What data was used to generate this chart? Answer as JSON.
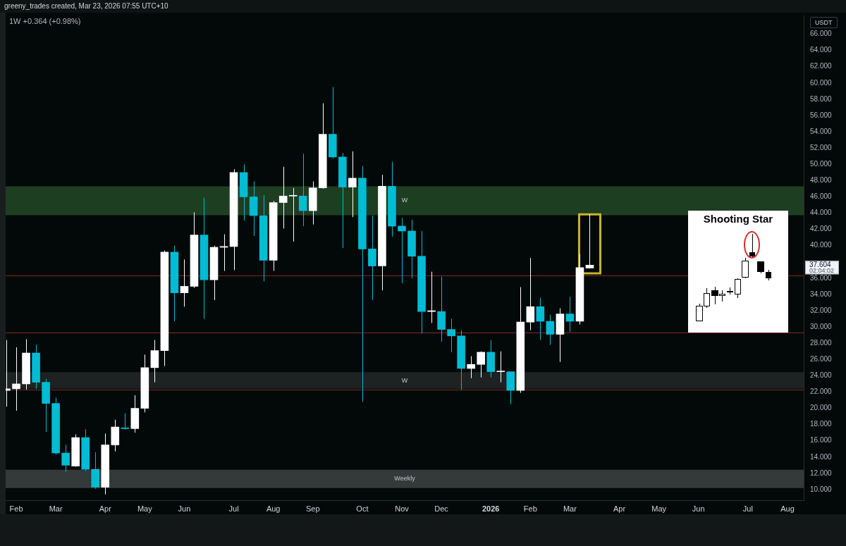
{
  "chart_data": {
    "type": "candlestick",
    "subtitle": "1W +0.364 (+0.98%)",
    "ylabel": "USDT",
    "annotations": [
      "greeny_trades created, Mar 23, 2026 07:55 UTC+10",
      "Shooting Star",
      "37.604",
      "02:04:02"
    ],
    "x": [
      "2025-01-27",
      "2025-02-03",
      "2025-02-10",
      "2025-02-17",
      "2025-02-24",
      "2025-03-03",
      "2025-03-10",
      "2025-03-17",
      "2025-03-24",
      "2025-03-31",
      "2025-04-07",
      "2025-04-14",
      "2025-04-21",
      "2025-04-28",
      "2025-05-05",
      "2025-05-12",
      "2025-05-19",
      "2025-05-26",
      "2025-06-02",
      "2025-06-09",
      "2025-06-16",
      "2025-06-23",
      "2025-06-30",
      "2025-07-07",
      "2025-07-14",
      "2025-07-21",
      "2025-07-28",
      "2025-08-04",
      "2025-08-11",
      "2025-08-18",
      "2025-08-25",
      "2025-09-01",
      "2025-09-08",
      "2025-09-15",
      "2025-09-22",
      "2025-09-29",
      "2025-10-06",
      "2025-10-13",
      "2025-10-20",
      "2025-10-27",
      "2025-11-03",
      "2025-11-10",
      "2025-11-17",
      "2025-11-24",
      "2025-12-01",
      "2025-12-08",
      "2025-12-15",
      "2025-12-22",
      "2025-12-29",
      "2026-01-05",
      "2026-01-12",
      "2026-01-19",
      "2026-01-26",
      "2026-02-02",
      "2026-02-09",
      "2026-02-16",
      "2026-02-23",
      "2026-03-02",
      "2026-03-09",
      "2026-03-16"
    ],
    "ohlc": [
      [
        22.2,
        28.4,
        20.2,
        22.4
      ],
      [
        22.4,
        27.5,
        19.7,
        23.0
      ],
      [
        23.0,
        28.5,
        22.3,
        26.8
      ],
      [
        26.8,
        27.8,
        22.4,
        23.2
      ],
      [
        23.2,
        23.6,
        17.1,
        20.6
      ],
      [
        20.6,
        21.3,
        14.3,
        14.5
      ],
      [
        14.5,
        15.5,
        12.2,
        13.0
      ],
      [
        12.9,
        16.8,
        12.8,
        16.4
      ],
      [
        16.4,
        17.4,
        12.3,
        12.5
      ],
      [
        12.5,
        14.6,
        10.1,
        10.3
      ],
      [
        10.3,
        16.9,
        9.4,
        15.5
      ],
      [
        15.5,
        18.6,
        14.7,
        17.7
      ],
      [
        17.6,
        19.4,
        17.4,
        17.5
      ],
      [
        17.5,
        21.6,
        17.0,
        20.0
      ],
      [
        20.0,
        26.6,
        19.5,
        25.0
      ],
      [
        25.0,
        28.4,
        23.2,
        27.1
      ],
      [
        27.1,
        39.4,
        25.2,
        39.2
      ],
      [
        39.2,
        40.0,
        30.7,
        34.2
      ],
      [
        34.2,
        38.3,
        32.5,
        35.0
      ],
      [
        35.0,
        44.1,
        34.8,
        41.3
      ],
      [
        41.3,
        45.9,
        31.0,
        35.8
      ],
      [
        35.8,
        40.0,
        33.3,
        39.8
      ],
      [
        39.8,
        41.4,
        36.9,
        39.9
      ],
      [
        39.9,
        49.4,
        37.0,
        49.0
      ],
      [
        49.0,
        50.0,
        43.1,
        46.0
      ],
      [
        46.0,
        47.9,
        41.2,
        43.7
      ],
      [
        43.7,
        46.2,
        35.6,
        38.2
      ],
      [
        38.2,
        45.5,
        36.9,
        45.3
      ],
      [
        45.3,
        49.7,
        42.1,
        46.1
      ],
      [
        46.1,
        47.1,
        40.5,
        46.1
      ],
      [
        46.1,
        51.3,
        42.4,
        44.3
      ],
      [
        44.3,
        47.9,
        42.6,
        47.1
      ],
      [
        47.1,
        57.5,
        47.0,
        53.7
      ],
      [
        53.7,
        59.5,
        50.7,
        50.9
      ],
      [
        50.9,
        51.4,
        39.7,
        47.2
      ],
      [
        47.2,
        51.6,
        43.5,
        48.3
      ],
      [
        48.3,
        49.8,
        20.8,
        39.6
      ],
      [
        39.6,
        43.7,
        33.3,
        37.5
      ],
      [
        37.5,
        48.7,
        34.5,
        47.3
      ],
      [
        47.3,
        50.3,
        41.1,
        42.4
      ],
      [
        42.4,
        43.4,
        35.4,
        41.8
      ],
      [
        41.8,
        43.2,
        36.0,
        38.7
      ],
      [
        38.7,
        41.8,
        29.2,
        31.9
      ],
      [
        31.9,
        36.8,
        30.5,
        32.0
      ],
      [
        31.9,
        36.2,
        28.2,
        29.7
      ],
      [
        29.7,
        31.0,
        26.9,
        28.9
      ],
      [
        28.9,
        29.6,
        22.3,
        24.9
      ],
      [
        24.9,
        26.4,
        23.7,
        25.4
      ],
      [
        25.4,
        27.0,
        23.8,
        26.9
      ],
      [
        26.9,
        28.4,
        23.8,
        24.5
      ],
      [
        24.5,
        27.0,
        23.2,
        24.5
      ],
      [
        24.5,
        24.5,
        20.5,
        22.2
      ],
      [
        22.2,
        34.9,
        21.9,
        30.6
      ],
      [
        30.6,
        38.5,
        29.6,
        32.5
      ],
      [
        32.5,
        33.6,
        28.4,
        30.7
      ],
      [
        30.7,
        31.5,
        27.8,
        29.1
      ],
      [
        29.1,
        32.3,
        25.7,
        31.6
      ],
      [
        31.6,
        33.7,
        29.4,
        30.7
      ],
      [
        30.7,
        39.0,
        30.3,
        37.3
      ],
      [
        37.24,
        43.85,
        37.2,
        37.604
      ]
    ],
    "colors": [
      "#ffffff",
      "#ffffff",
      "#ffffff",
      "#00bcd4",
      "#00bcd4",
      "#00bcd4",
      "#00bcd4",
      "#ffffff",
      "#00bcd4",
      "#00bcd4",
      "#ffffff",
      "#ffffff",
      "#00bcd4",
      "#ffffff",
      "#ffffff",
      "#ffffff",
      "#ffffff",
      "#00bcd4",
      "#ffffff",
      "#ffffff",
      "#00bcd4",
      "#ffffff",
      "#ffffff",
      "#ffffff",
      "#00bcd4",
      "#00bcd4",
      "#00bcd4",
      "#ffffff",
      "#ffffff",
      "#ffffff",
      "#00bcd4",
      "#ffffff",
      "#ffffff",
      "#00bcd4",
      "#00bcd4",
      "#ffffff",
      "#00bcd4",
      "#00bcd4",
      "#ffffff",
      "#00bcd4",
      "#00bcd4",
      "#00bcd4",
      "#00bcd4",
      "#ffffff",
      "#00bcd4",
      "#00bcd4",
      "#00bcd4",
      "#ffffff",
      "#ffffff",
      "#00bcd4",
      "#ffffff",
      "#00bcd4",
      "#ffffff",
      "#ffffff",
      "#00bcd4",
      "#00bcd4",
      "#ffffff",
      "#00bcd4",
      "#ffffff",
      "#ffffff"
    ],
    "xlim": [
      "2025-01-26T12:00",
      "2026-08-14T12:00"
    ],
    "xticks": [
      {
        "value": "2025-02-03",
        "label": "Feb"
      },
      {
        "value": "2025-03-03",
        "label": "Mar"
      },
      {
        "value": "2025-04-07",
        "label": "Apr"
      },
      {
        "value": "2025-05-05",
        "label": "May"
      },
      {
        "value": "2025-06-02",
        "label": "Jun"
      },
      {
        "value": "2025-07-07",
        "label": "Jul"
      },
      {
        "value": "2025-08-04",
        "label": "Aug"
      },
      {
        "value": "2025-09-01",
        "label": "Sep"
      },
      {
        "value": "2025-10-06",
        "label": "Oct"
      },
      {
        "value": "2025-11-03",
        "label": "Nov"
      },
      {
        "value": "2025-12-01",
        "label": "Dec"
      },
      {
        "value": "2026-01-05",
        "label": "2026"
      },
      {
        "value": "2026-02-02",
        "label": "Feb"
      },
      {
        "value": "2026-03-02",
        "label": "Mar"
      },
      {
        "value": "2026-04-06",
        "label": "Apr"
      },
      {
        "value": "2026-05-04",
        "label": "May"
      },
      {
        "value": "2026-06-01",
        "label": "Jun"
      },
      {
        "value": "2026-07-06",
        "label": "Jul"
      },
      {
        "value": "2026-08-03",
        "label": "Aug"
      }
    ],
    "ylim": [
      8.7,
      68.3
    ],
    "yticks": [
      {
        "value": 10,
        "label": "10.000"
      },
      {
        "value": 12,
        "label": "12.000"
      },
      {
        "value": 14,
        "label": "14.000"
      },
      {
        "value": 16,
        "label": "16.000"
      },
      {
        "value": 18,
        "label": "18.000"
      },
      {
        "value": 20,
        "label": "20.000"
      },
      {
        "value": 22,
        "label": "22.000"
      },
      {
        "value": 24,
        "label": "24.000"
      },
      {
        "value": 26,
        "label": "26.000"
      },
      {
        "value": 28,
        "label": "28.000"
      },
      {
        "value": 30,
        "label": "30.000"
      },
      {
        "value": 32,
        "label": "32.000"
      },
      {
        "value": 34,
        "label": "34.000"
      },
      {
        "value": 36,
        "label": "36.000"
      },
      {
        "value": 40,
        "label": "40.000"
      },
      {
        "value": 42,
        "label": "42.000"
      },
      {
        "value": 44,
        "label": "44.000"
      },
      {
        "value": 46,
        "label": "46.000"
      },
      {
        "value": 48,
        "label": "48.000"
      },
      {
        "value": 50,
        "label": "50.000"
      },
      {
        "value": 52,
        "label": "52.000"
      },
      {
        "value": 54,
        "label": "54.000"
      },
      {
        "value": 56,
        "label": "56.000"
      },
      {
        "value": 58,
        "label": "58.000"
      },
      {
        "value": 60,
        "label": "60.000"
      },
      {
        "value": 62,
        "label": "62.000"
      },
      {
        "value": 64,
        "label": "64.000"
      },
      {
        "value": 66,
        "label": "66.000"
      }
    ],
    "bands": [
      {
        "axis": "y",
        "from": 43.75,
        "to": 47.3,
        "label": "W",
        "color": "#1e3e22"
      },
      {
        "axis": "y",
        "from": 22.4,
        "to": 24.45,
        "label": "W",
        "color": "#1e2222"
      },
      {
        "axis": "y",
        "from": 10.2,
        "to": 12.45,
        "label": "Weekly",
        "color": "#343939"
      }
    ],
    "ref_lines": [
      {
        "axis": "y",
        "value": 36.3,
        "color": "#822828"
      },
      {
        "axis": "y",
        "value": 29.3,
        "color": "#822828"
      },
      {
        "axis": "y",
        "value": 22.3,
        "color": "#822828"
      }
    ]
  }
}
